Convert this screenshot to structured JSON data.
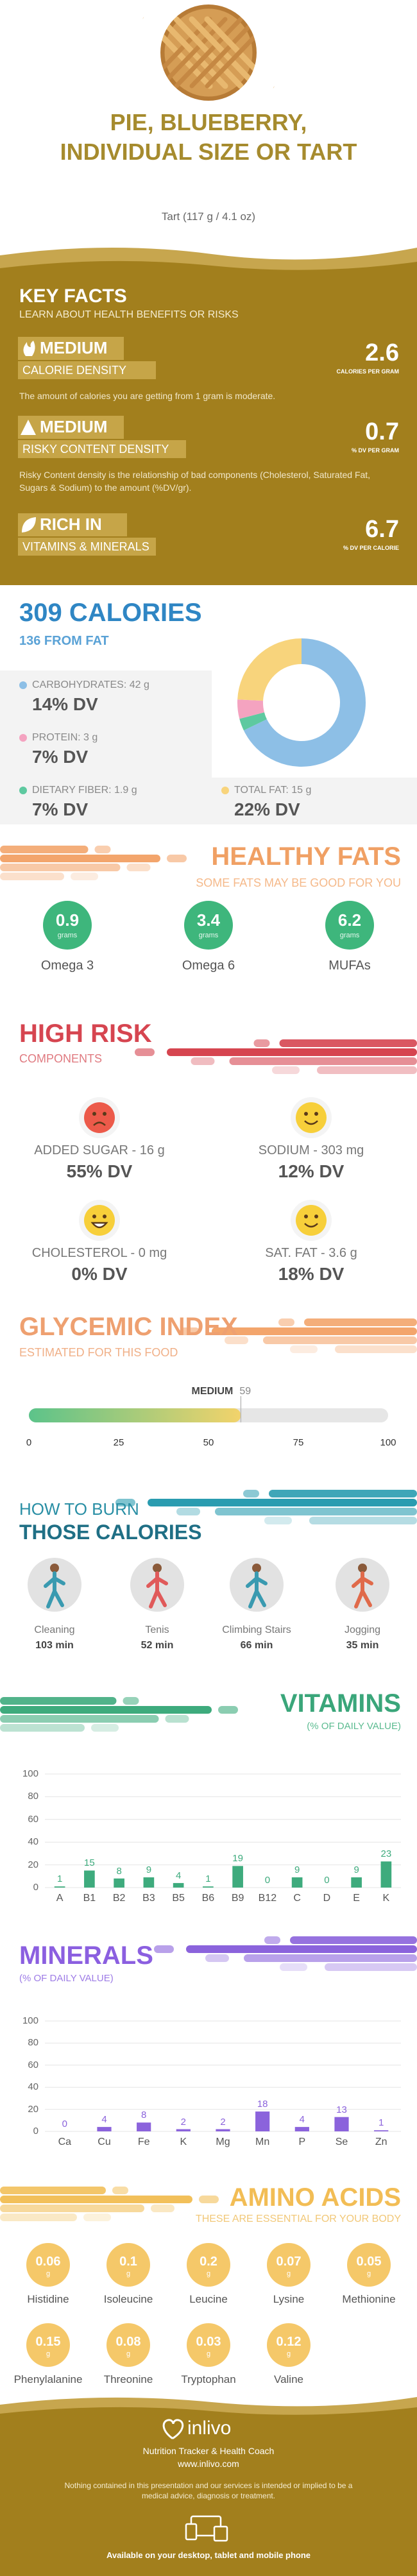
{
  "header": {
    "title": "PIE, BLUEBERRY, INDIVIDUAL SIZE OR TART",
    "serving": "Tart (117 g / 4.1 oz)"
  },
  "key_facts": {
    "title": "KEY FACTS",
    "subtitle": "LEARN ABOUT HEALTH BENEFITS OR RISKS",
    "facts": [
      {
        "level": "MEDIUM",
        "name": "CALORIE DENSITY",
        "value": 2.6,
        "unit": "CALORIES PER GRAM",
        "description": "The amount of calories you are getting from 1 gram is moderate."
      },
      {
        "level": "MEDIUM",
        "name": "RISKY CONTENT DENSITY",
        "value": 0.7,
        "unit": "% DV PER GRAM",
        "description": "Risky Content density is the relationship of bad components (Cholesterol, Saturated Fat, Sugars & Sodium) to the amount (%DV/gr)."
      },
      {
        "level": "RICH IN",
        "name": "VITAMINS & MINERALS",
        "value": 6.7,
        "unit": "% DV PER CALORIE"
      }
    ]
  },
  "calories": {
    "title": "309 CALORIES",
    "from_fat": "136 FROM FAT",
    "nutrients": [
      {
        "label": "CARBOHYDRATES: 42 g",
        "value": 42,
        "dv": "14% DV",
        "color": "#8dbfe6"
      },
      {
        "label": "PROTEIN: 3 g",
        "value": 3,
        "dv": "7% DV",
        "color": "#f4a3c0"
      },
      {
        "label": "DIETARY FIBER: 1.9 g",
        "value": 1.9,
        "dv": "7% DV",
        "color": "#5ec9a0"
      },
      {
        "label": "TOTAL FAT: 15 g",
        "value": 15,
        "dv": "22% DV",
        "color": "#f8d47c"
      }
    ]
  },
  "healthy_fats": {
    "title": "HEALTHY FATS",
    "subtitle": "SOME FATS MAY BE GOOD FOR YOU",
    "items": [
      {
        "value": 0.9,
        "unit": "grams",
        "name": "Omega 3"
      },
      {
        "value": 3.4,
        "unit": "grams",
        "name": "Omega 6"
      },
      {
        "value": 6.2,
        "unit": "grams",
        "name": "MUFAs"
      }
    ]
  },
  "high_risk": {
    "title": "HIGH RISK",
    "subtitle": "COMPONENTS",
    "items": [
      {
        "label": "ADDED SUGAR - 16 g",
        "dv": "55% DV",
        "face": "sad"
      },
      {
        "label": "SODIUM - 303 mg",
        "dv": "12% DV",
        "face": "happy"
      },
      {
        "label": "CHOLESTEROL - 0 mg",
        "dv": "0% DV",
        "face": "grin"
      },
      {
        "label": "SAT. FAT - 3.6 g",
        "dv": "18% DV",
        "face": "happy"
      }
    ]
  },
  "glycemic": {
    "title": "GLYCEMIC INDEX",
    "subtitle": "ESTIMATED FOR THIS FOOD",
    "level": "MEDIUM",
    "value": 59,
    "xlim": [
      0,
      100
    ],
    "xticks": [
      0,
      25,
      50,
      75,
      100
    ]
  },
  "burn": {
    "title": "HOW TO BURN",
    "title2": "THOSE CALORIES",
    "activities": [
      {
        "name": "Cleaning",
        "time": "103 min"
      },
      {
        "name": "Tenis",
        "time": "52 min"
      },
      {
        "name": "Climbing Stairs",
        "time": "66 min"
      },
      {
        "name": "Jogging",
        "time": "35 min"
      }
    ]
  },
  "vitamins": {
    "title": "VITAMINS",
    "subtitle": "(% OF DAILY VALUE)",
    "categories": [
      "A",
      "B1",
      "B2",
      "B3",
      "B5",
      "B6",
      "B9",
      "B12",
      "C",
      "D",
      "E",
      "K"
    ],
    "values": [
      1,
      15,
      8,
      9,
      4,
      1,
      19,
      0,
      9,
      0,
      9,
      23
    ],
    "ylim": [
      0,
      100
    ],
    "yticks": [
      0,
      20,
      40,
      60,
      80,
      100
    ],
    "color": "#3eab7d"
  },
  "minerals": {
    "title": "MINERALS",
    "subtitle": "(% OF DAILY VALUE)",
    "categories": [
      "Ca",
      "Cu",
      "Fe",
      "K",
      "Mg",
      "Mn",
      "P",
      "Se",
      "Zn"
    ],
    "values": [
      0,
      4,
      8,
      2,
      2,
      18,
      4,
      13,
      1
    ],
    "ylim": [
      0,
      100
    ],
    "yticks": [
      0,
      20,
      40,
      60,
      80,
      100
    ],
    "color": "#8b63dc"
  },
  "amino_acids": {
    "title": "AMINO ACIDS",
    "subtitle": "THESE ARE ESSENTIAL FOR YOUR BODY",
    "unit": "g",
    "items": [
      {
        "name": "Histidine",
        "value": 0.06
      },
      {
        "name": "Isoleucine",
        "value": 0.1
      },
      {
        "name": "Leucine",
        "value": 0.2
      },
      {
        "name": "Lysine",
        "value": 0.07
      },
      {
        "name": "Methionine",
        "value": 0.05
      },
      {
        "name": "Phenylalanine",
        "value": 0.15
      },
      {
        "name": "Threonine",
        "value": 0.08
      },
      {
        "name": "Tryptophan",
        "value": 0.03
      },
      {
        "name": "Valine",
        "value": 0.12
      }
    ]
  },
  "footer": {
    "brand": "inlivo",
    "tagline": "Nutrition Tracker & Health Coach",
    "url": "www.inlivo.com",
    "disclaimer": "Nothing contained in this presentation and our services is intended or implied to be a medical advice, diagnosis or treatment.",
    "availability": "Available on your desktop, tablet and mobile phone"
  }
}
